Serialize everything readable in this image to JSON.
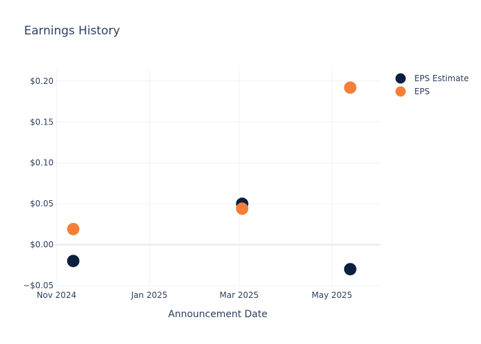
{
  "chart_data": {
    "type": "scatter",
    "title": "Earnings History",
    "xlabel": "Announcement Date",
    "ylabel": "",
    "x_ticks": [
      {
        "date": "2024-11-01",
        "label": "Nov 2024"
      },
      {
        "date": "2025-01-01",
        "label": "Jan 2025"
      },
      {
        "date": "2025-03-01",
        "label": "Mar 2025"
      },
      {
        "date": "2025-05-01",
        "label": "May 2025"
      }
    ],
    "xlim": [
      "2024-10-31",
      "2025-06-02"
    ],
    "ylim": [
      -0.05,
      0.215
    ],
    "y_ticks": [
      {
        "value": -0.05,
        "label": "−$0.05"
      },
      {
        "value": 0.0,
        "label": "$0.00"
      },
      {
        "value": 0.05,
        "label": "$0.05"
      },
      {
        "value": 0.1,
        "label": "$0.10"
      },
      {
        "value": 0.15,
        "label": "$0.15"
      },
      {
        "value": 0.2,
        "label": "$0.20"
      }
    ],
    "grid": true,
    "legend_position": "top-right",
    "series": [
      {
        "name": "EPS Estimate",
        "color": "#0b1f3f",
        "points": [
          {
            "x": "2024-11-12",
            "y": -0.02
          },
          {
            "x": "2025-03-03",
            "y": 0.05
          },
          {
            "x": "2025-05-13",
            "y": -0.03
          }
        ]
      },
      {
        "name": "EPS",
        "color": "#f47f38",
        "points": [
          {
            "x": "2024-11-12",
            "y": 0.019
          },
          {
            "x": "2025-03-03",
            "y": 0.044
          },
          {
            "x": "2025-05-13",
            "y": 0.192
          }
        ]
      }
    ]
  }
}
